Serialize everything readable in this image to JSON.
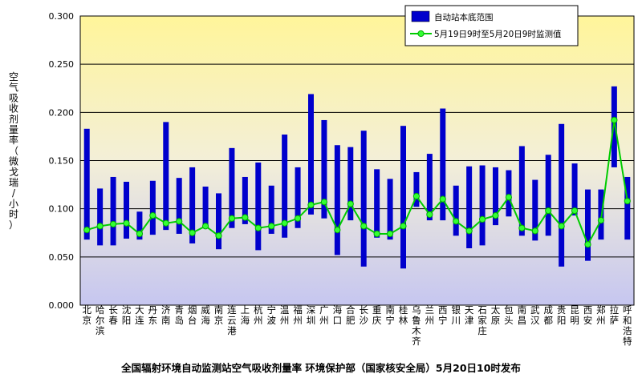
{
  "chart_data": {
    "type": "bar",
    "ylabel": "空气吸收剂量率（微戈瑞/小时）",
    "ylim": [
      0,
      0.3
    ],
    "yticks": [
      "0.000",
      "0.050",
      "0.100",
      "0.150",
      "0.200",
      "0.250",
      "0.300"
    ],
    "grid": true,
    "legend_position": "top-right",
    "footer": "全国辐射环境自动监测站空气吸收剂量率  环境保护部（国家核安全局）5月20日10时发布",
    "colors": {
      "bar": "#0000cc",
      "line": "#00cc00",
      "marker": "#33ff33",
      "band_top": "#fff59a",
      "band_bottom": "#c6c6f0"
    },
    "categories": [
      "北京",
      "哈尔滨",
      "长春",
      "沈阳",
      "大连",
      "丹东",
      "济南",
      "青岛",
      "烟台",
      "威海",
      "南京",
      "连云港",
      "上海",
      "杭州",
      "宁波",
      "温州",
      "福州",
      "深圳",
      "广州",
      "海口",
      "合肥",
      "长沙",
      "重庆",
      "南宁",
      "桂林",
      "乌鲁木齐",
      "兰州",
      "西宁",
      "银川",
      "天津",
      "石家庄",
      "太原",
      "包头",
      "南昌",
      "武汉",
      "成都",
      "贵阳",
      "昆明",
      "西安",
      "郑州",
      "拉萨",
      "呼和浩特"
    ],
    "series": [
      {
        "name": "自动站本底范围",
        "type": "range-bar",
        "low": [
          0.068,
          0.062,
          0.062,
          0.069,
          0.068,
          0.073,
          0.078,
          0.074,
          0.064,
          0.08,
          0.058,
          0.08,
          0.084,
          0.057,
          0.074,
          0.07,
          0.08,
          0.094,
          0.09,
          0.052,
          0.088,
          0.04,
          0.07,
          0.068,
          0.038,
          0.102,
          0.088,
          0.088,
          0.072,
          0.059,
          0.062,
          0.083,
          0.092,
          0.072,
          0.067,
          0.072,
          0.04,
          0.093,
          0.046,
          0.068,
          0.143,
          0.068
        ],
        "high": [
          0.183,
          0.121,
          0.133,
          0.128,
          0.097,
          0.129,
          0.19,
          0.132,
          0.143,
          0.123,
          0.116,
          0.163,
          0.133,
          0.148,
          0.124,
          0.177,
          0.143,
          0.219,
          0.192,
          0.166,
          0.164,
          0.181,
          0.141,
          0.131,
          0.186,
          0.138,
          0.157,
          0.204,
          0.124,
          0.144,
          0.145,
          0.143,
          0.14,
          0.165,
          0.13,
          0.156,
          0.188,
          0.147,
          0.12,
          0.12,
          0.227,
          0.133
        ]
      },
      {
        "name": "5月19日9时至5月20日9时监测值",
        "type": "line",
        "values": [
          0.078,
          0.082,
          0.084,
          0.085,
          0.074,
          0.093,
          0.085,
          0.087,
          0.075,
          0.082,
          0.072,
          0.09,
          0.091,
          0.08,
          0.082,
          0.085,
          0.09,
          0.104,
          0.107,
          0.078,
          0.105,
          0.082,
          0.074,
          0.074,
          0.082,
          0.113,
          0.094,
          0.11,
          0.087,
          0.077,
          0.089,
          0.093,
          0.112,
          0.08,
          0.077,
          0.098,
          0.082,
          0.098,
          0.063,
          0.088,
          0.192,
          0.108
        ]
      }
    ]
  }
}
